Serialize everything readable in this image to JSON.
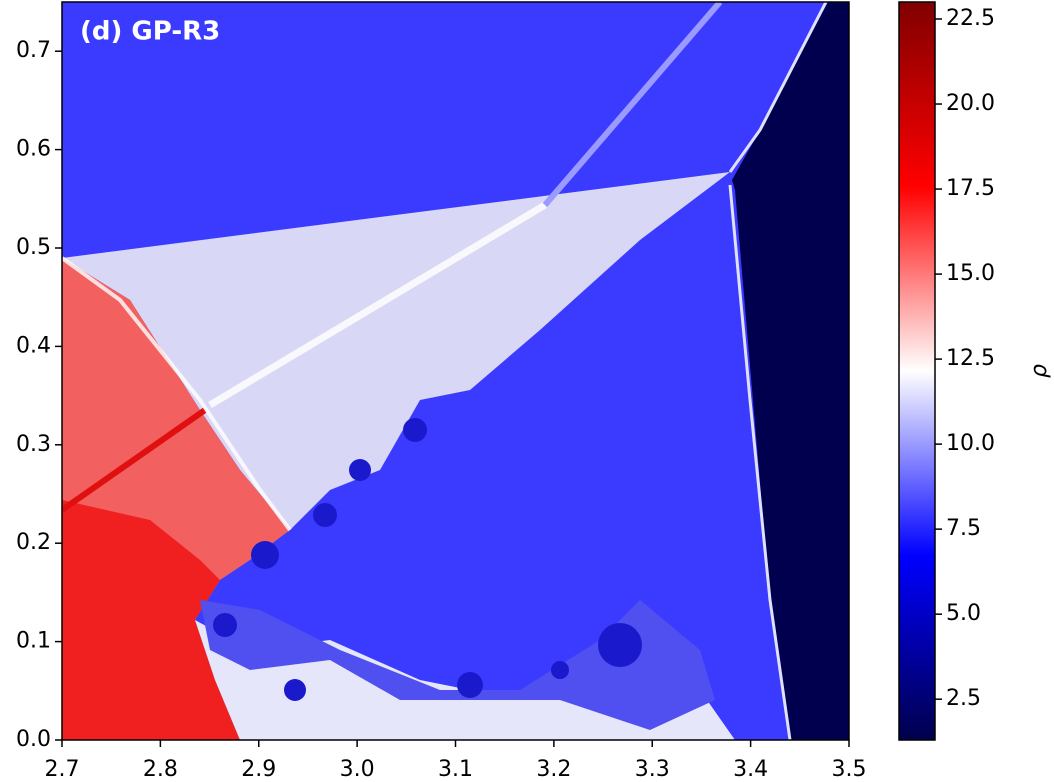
{
  "chart_data": {
    "type": "heatmap",
    "title": "(d) GP-R3",
    "xlim": [
      2.7,
      3.5
    ],
    "xticks": [
      2.7,
      2.8,
      2.9,
      {
        "value": 3,
        "label": "3.0"
      },
      3.1,
      3.2,
      3.3,
      3.4,
      3.5
    ],
    "ylim": [
      0,
      0.75
    ],
    "yticks": [
      {
        "value": 0,
        "label": "0.0"
      },
      0.1,
      0.2,
      0.3,
      0.4,
      0.5,
      0.6,
      0.7
    ],
    "colorbar": {
      "label": "ρ",
      "lim": [
        1.3,
        23
      ],
      "colormap": "seismic",
      "ticks": [
        2.5,
        {
          "value": 5,
          "label": "5.0"
        },
        7.5,
        {
          "value": 10,
          "label": "10.0"
        },
        12.5,
        {
          "value": 15,
          "label": "15.0"
        },
        17.5,
        {
          "value": 20,
          "label": "20.0"
        },
        22.5
      ]
    }
  }
}
